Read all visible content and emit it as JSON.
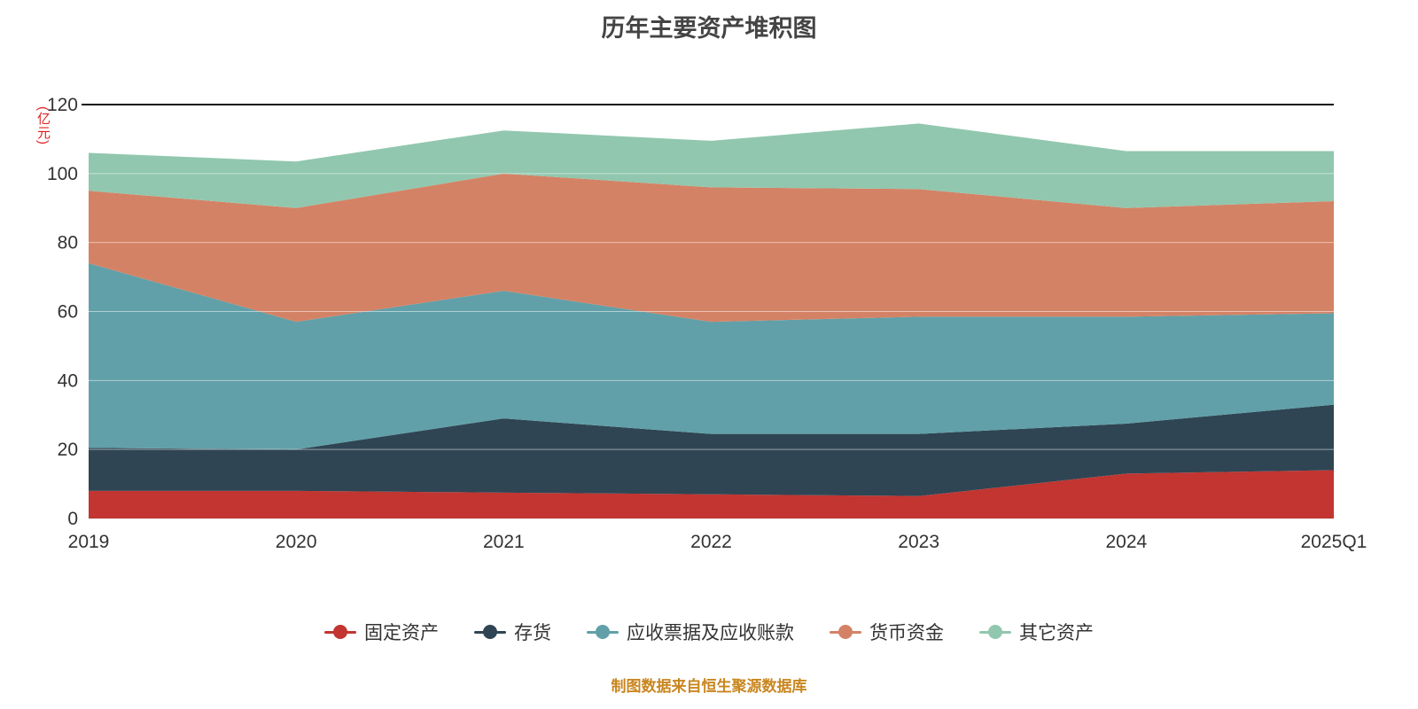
{
  "footer": "制图数据来自恒生聚源数据库",
  "chart_data": {
    "type": "area",
    "stacked": true,
    "title": "历年主要资产堆积图",
    "ylabel": "(亿元)",
    "xlabel": "",
    "categories": [
      "2019",
      "2020",
      "2021",
      "2022",
      "2023",
      "2024",
      "2025Q1"
    ],
    "series": [
      {
        "name": "固定资产",
        "color": "#c23531",
        "values": [
          8,
          8,
          7.5,
          7,
          6.5,
          13,
          14
        ]
      },
      {
        "name": "存货",
        "color": "#2f4554",
        "values": [
          12.5,
          12,
          21.5,
          17.5,
          18,
          14.5,
          19
        ]
      },
      {
        "name": "应收票据及应收账款",
        "color": "#61a0a8",
        "values": [
          53.5,
          37,
          37,
          32.5,
          34,
          31,
          26.5
        ]
      },
      {
        "name": "货币资金",
        "color": "#d48265",
        "values": [
          21,
          33,
          34,
          39,
          37,
          31.5,
          32.5
        ]
      },
      {
        "name": "其它资产",
        "color": "#91c7ae",
        "values": [
          11,
          13.5,
          12.5,
          13.5,
          19,
          16.5,
          14.5
        ]
      }
    ],
    "ylim": [
      0,
      120
    ],
    "y_ticks": [
      0,
      20,
      40,
      60,
      80,
      100,
      120
    ],
    "grid": true,
    "legend_position": "bottom"
  }
}
